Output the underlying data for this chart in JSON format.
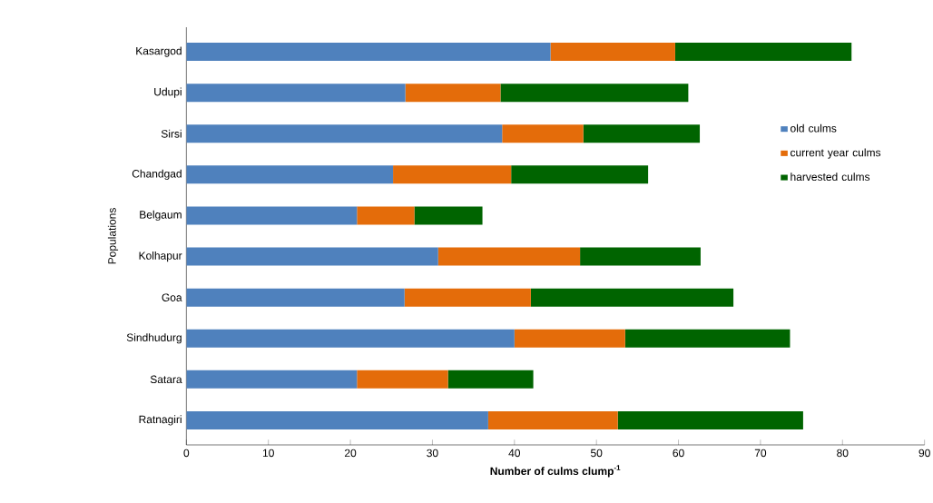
{
  "chart_data": {
    "type": "bar",
    "orientation": "horizontal",
    "stacked": true,
    "xlabel": "Number of culms clump$^{-1}$",
    "ylabel": "Populations",
    "categories": [
      "Kasargod",
      "Udupi",
      "Sirsi",
      "Chandgad",
      "Belgaum",
      "Kolhapur",
      "Goa",
      "Sindhudurg",
      "Satara",
      "Ratnagiri"
    ],
    "series": [
      {
        "name": "old culms",
        "color": "#4f81bd",
        "values": [
          44.4,
          26.7,
          38.5,
          25.2,
          20.8,
          30.7,
          26.6,
          40.0,
          20.8,
          36.8
        ]
      },
      {
        "name": "current year culms",
        "color": "#e46c0a",
        "values": [
          15.2,
          11.6,
          9.9,
          14.4,
          7.0,
          17.3,
          15.4,
          13.5,
          11.1,
          15.8
        ]
      },
      {
        "name": "harvested culms",
        "color": "#006400",
        "values": [
          21.5,
          22.9,
          14.2,
          16.7,
          8.3,
          14.7,
          24.7,
          20.1,
          10.4,
          22.6
        ]
      }
    ],
    "xlim": [
      0,
      90
    ],
    "xticks": [
      0,
      10,
      20,
      30,
      40,
      50,
      60,
      70,
      80,
      90
    ],
    "grid": false,
    "legend": "right"
  }
}
